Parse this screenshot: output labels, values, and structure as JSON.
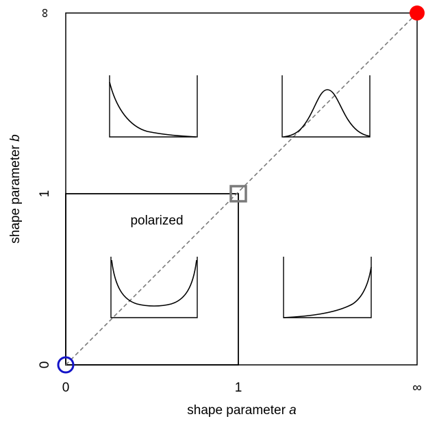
{
  "axes": {
    "x_title_prefix": "shape parameter ",
    "x_title_var": "a",
    "y_title_prefix": "shape parameter ",
    "y_title_var": "b",
    "x_ticks": [
      "0",
      "1",
      "∞"
    ],
    "y_ticks": [
      "0",
      "1",
      "∞"
    ]
  },
  "region_label": "polarized",
  "colors": {
    "frame": "#000000",
    "diagonal": "#7a7a7a",
    "marker_origin": "#1414c8",
    "marker_infinity": "#ff0000",
    "marker_center": "#7a7a7a"
  },
  "markers": {
    "origin": "open-circle",
    "center": "open-square",
    "infinity": "filled-circle"
  }
}
